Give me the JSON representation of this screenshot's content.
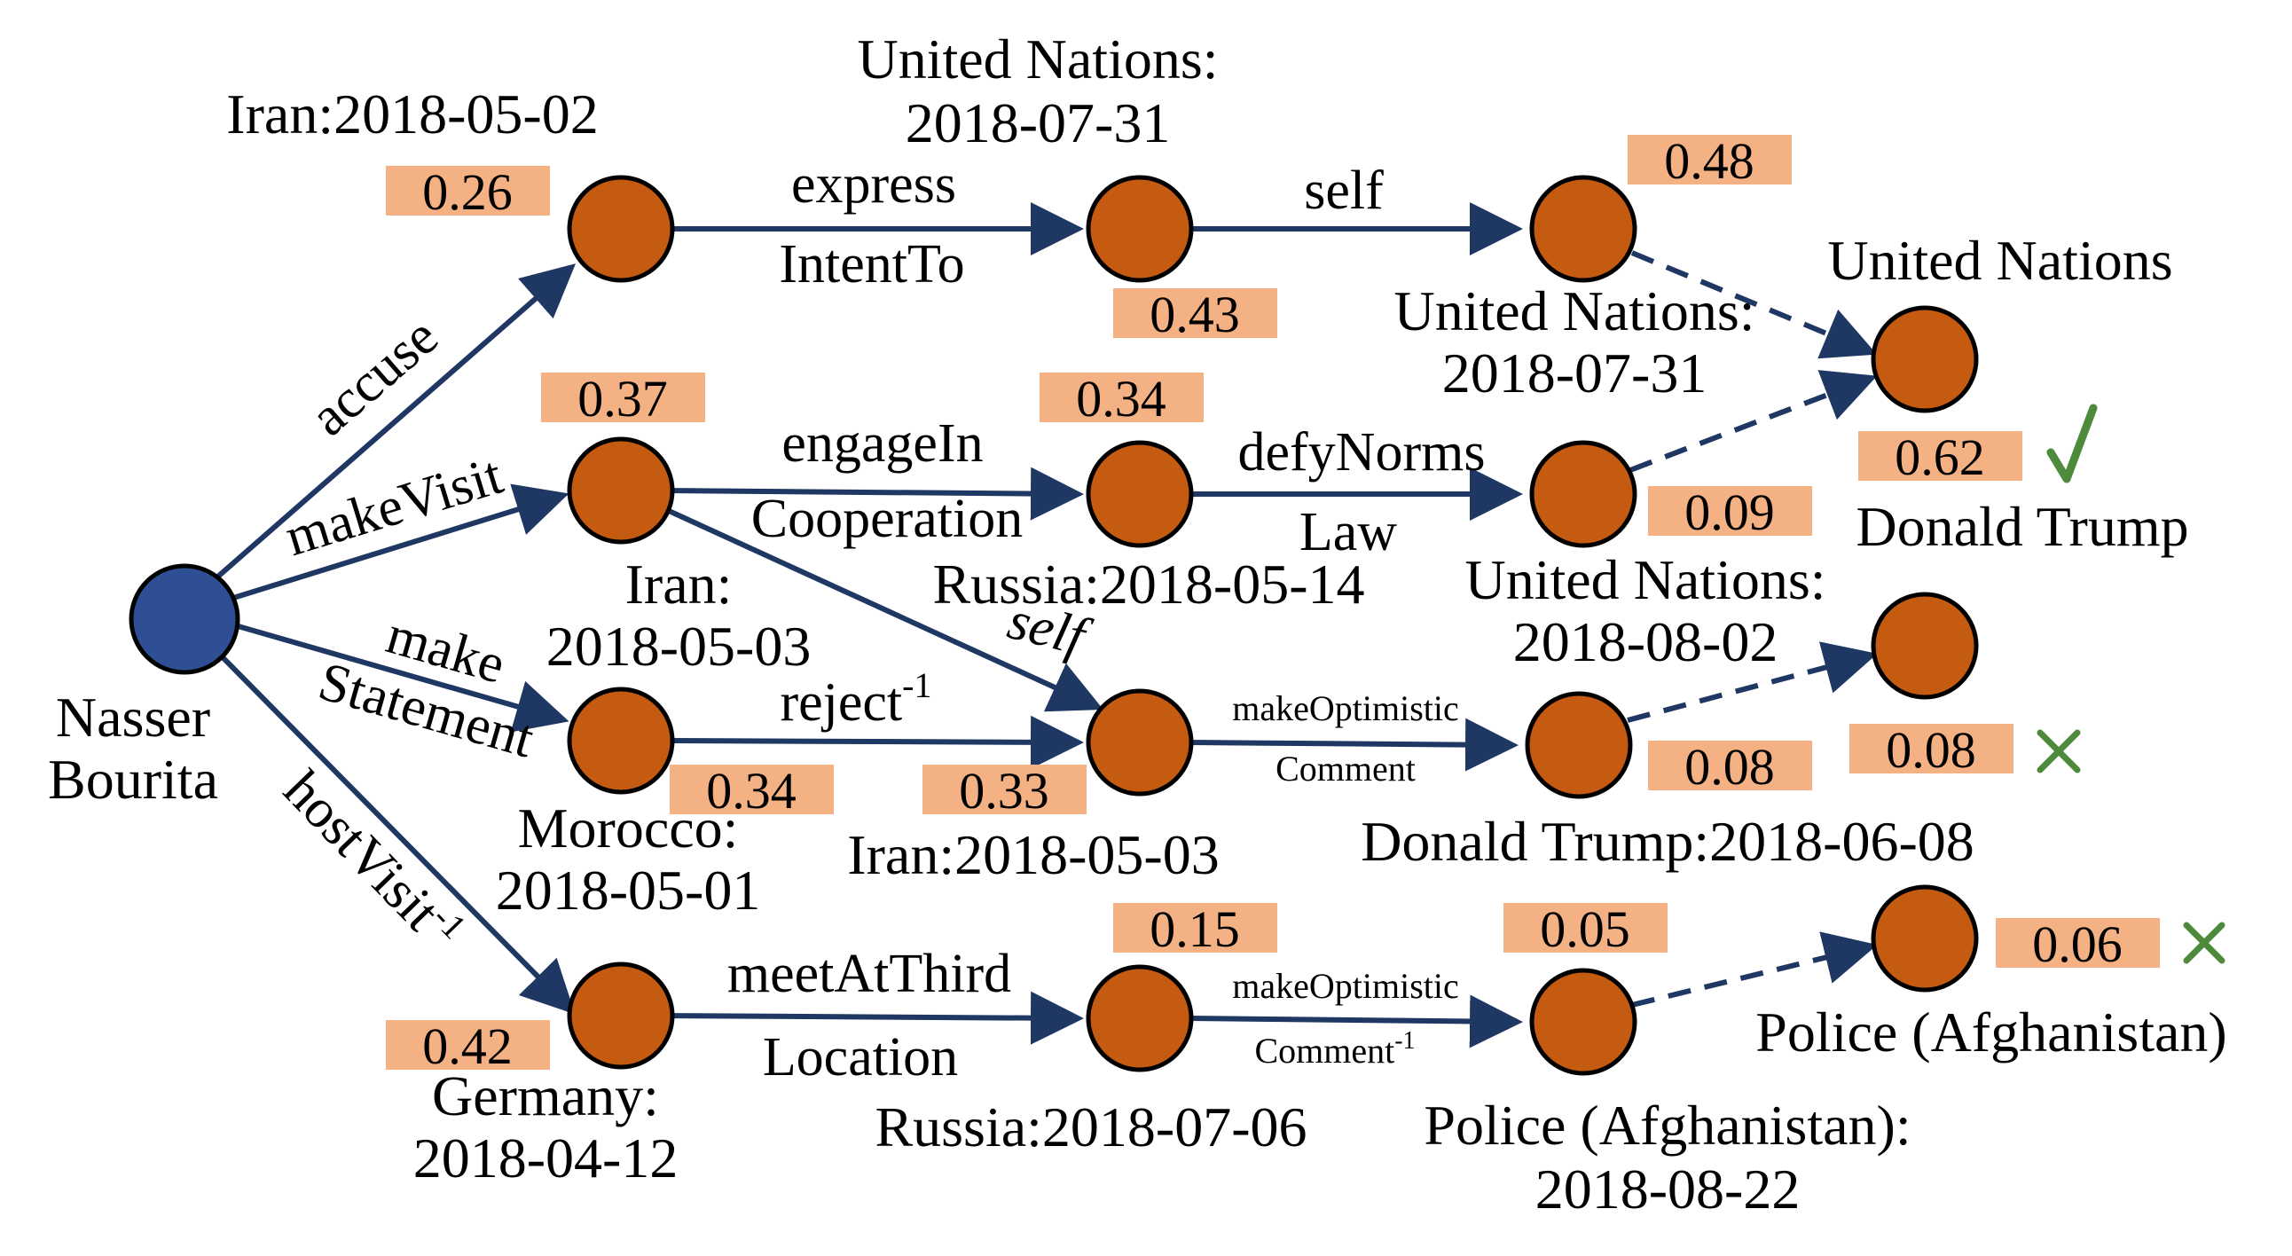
{
  "colors": {
    "query_node": "#2f4f94",
    "entity_node": "#c55a11",
    "edge": "#1f3763",
    "score_box": "#f4b183",
    "mark": "#4e8a3b"
  },
  "nodes": {
    "query": "Nasser\nBourita",
    "n1": "Iran:2018-05-02",
    "n2": "Iran:\n2018-05-03",
    "n3": "Morocco:\n2018-05-01",
    "n4": "Germany:\n2018-04-12",
    "n5": "United Nations:\n2018-07-31",
    "n6": "Russia:2018-05-14",
    "n7": "Iran:2018-05-03",
    "n8": "Russia:2018-07-06",
    "n9": "United Nations:\n2018-07-31",
    "n10": "United Nations:\n2018-08-02",
    "n11": "Donald Trump:2018-06-08",
    "n12": "Police (Afghanistan):\n2018-08-22",
    "a1": "United Nations",
    "a1b": "Donald Trump",
    "a3": "Police (Afghanistan)"
  },
  "edges": {
    "accuse": "accuse",
    "makeVisit": "makeVisit",
    "make": "make",
    "statement": "Statement",
    "hostVisit": "hostVisit",
    "hostVisit_sup": "-1",
    "express": "express",
    "intentTo": "IntentTo",
    "engageIn": "engageIn",
    "cooperation": "Cooperation",
    "self_diag": "self",
    "reject": "reject",
    "reject_sup": "-1",
    "meetAtThird": "meetAtThird",
    "location": "Location",
    "self_top": "self",
    "defyNorms": "defyNorms",
    "law": "Law",
    "makeOptimistic1": "makeOptimistic",
    "comment1": "Comment",
    "makeOptimistic2": "makeOptimistic",
    "comment2": "Comment",
    "comment2_sup": "-1"
  },
  "scores": {
    "s1": "0.26",
    "s2": "0.37",
    "s3": "0.34",
    "s4": "0.42",
    "s5": "0.43",
    "s6": "0.34",
    "s7": "0.33",
    "s8": "0.15",
    "s9": "0.48",
    "s10": "0.09",
    "s11": "0.08",
    "s12": "0.05",
    "a1": "0.62",
    "a2": "0.08",
    "a3": "0.06"
  },
  "marks": {
    "a1": "check",
    "a2": "cross",
    "a3": "cross"
  }
}
